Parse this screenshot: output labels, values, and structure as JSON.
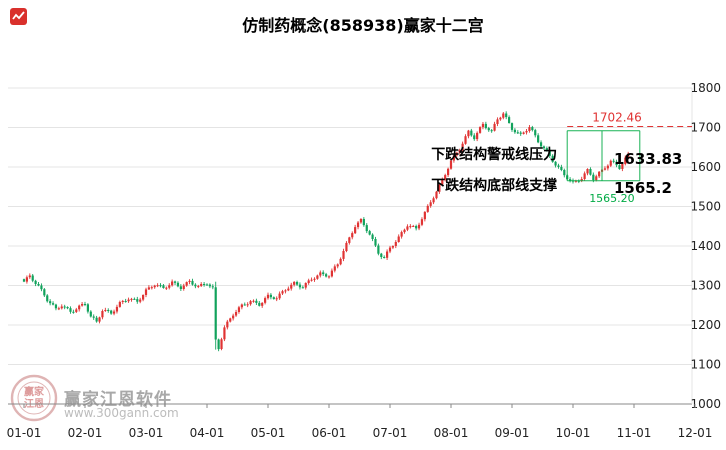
{
  "title": "仿制药概念(858938)赢家十二宫",
  "watermark": {
    "brand": "赢家江恩软件",
    "url": "www.300gann.com",
    "seal_line1": "赢家",
    "seal_line2": "江恩"
  },
  "colors": {
    "up": "#e03333",
    "down": "#11a25c",
    "grid": "#e4e4e4",
    "axis": "#8a8a8a",
    "tick_text": "#222222",
    "annotation_red": "#e03333",
    "annotation_green": "#00aa44",
    "annotation_black": "#000000",
    "logo_red": "#d9302c"
  },
  "chart_data": {
    "type": "candlestick",
    "title": "仿制药概念(858938)赢家十二宫",
    "x_tick_labels": [
      "01-01",
      "02-01",
      "03-01",
      "04-01",
      "05-01",
      "06-01",
      "07-01",
      "08-01",
      "09-01",
      "10-01",
      "11-01",
      "12-01"
    ],
    "y_ticks": [
      1000,
      1100,
      1200,
      1300,
      1400,
      1500,
      1600,
      1700,
      1800
    ],
    "y_range": [
      1000,
      1800
    ],
    "days_per_month": 21,
    "num_days": 209,
    "last_close": 1633.83,
    "close_waypoints": [
      [
        0,
        1310
      ],
      [
        2,
        1322
      ],
      [
        5,
        1295
      ],
      [
        8,
        1262
      ],
      [
        11,
        1240
      ],
      [
        13,
        1252
      ],
      [
        16,
        1236
      ],
      [
        19,
        1248
      ],
      [
        21,
        1255
      ],
      [
        23,
        1220
      ],
      [
        25,
        1205
      ],
      [
        27,
        1235
      ],
      [
        30,
        1228
      ],
      [
        33,
        1255
      ],
      [
        36,
        1270
      ],
      [
        39,
        1262
      ],
      [
        42,
        1288
      ],
      [
        45,
        1302
      ],
      [
        48,
        1290
      ],
      [
        51,
        1305
      ],
      [
        54,
        1295
      ],
      [
        57,
        1312
      ],
      [
        60,
        1300
      ],
      [
        63,
        1308
      ],
      [
        65,
        1292
      ],
      [
        66,
        1160
      ],
      [
        67,
        1140
      ],
      [
        69,
        1190
      ],
      [
        72,
        1225
      ],
      [
        75,
        1248
      ],
      [
        78,
        1262
      ],
      [
        81,
        1255
      ],
      [
        84,
        1275
      ],
      [
        87,
        1268
      ],
      [
        90,
        1288
      ],
      [
        93,
        1302
      ],
      [
        96,
        1295
      ],
      [
        99,
        1318
      ],
      [
        102,
        1332
      ],
      [
        105,
        1328
      ],
      [
        108,
        1355
      ],
      [
        111,
        1402
      ],
      [
        114,
        1448
      ],
      [
        116,
        1462
      ],
      [
        119,
        1430
      ],
      [
        122,
        1385
      ],
      [
        124,
        1372
      ],
      [
        126,
        1398
      ],
      [
        129,
        1422
      ],
      [
        132,
        1452
      ],
      [
        135,
        1440
      ],
      [
        138,
        1482
      ],
      [
        141,
        1525
      ],
      [
        144,
        1568
      ],
      [
        146,
        1602
      ],
      [
        147,
        1618
      ],
      [
        150,
        1648
      ],
      [
        153,
        1688
      ],
      [
        155,
        1672
      ],
      [
        158,
        1705
      ],
      [
        161,
        1688
      ],
      [
        163,
        1722
      ],
      [
        165,
        1738
      ],
      [
        167,
        1712
      ],
      [
        168,
        1700
      ],
      [
        171,
        1682
      ],
      [
        174,
        1702
      ],
      [
        177,
        1662
      ],
      [
        180,
        1635
      ],
      [
        183,
        1605
      ],
      [
        186,
        1582
      ],
      [
        189,
        1562
      ],
      [
        192,
        1575
      ],
      [
        194,
        1592
      ],
      [
        196,
        1570
      ],
      [
        199,
        1588
      ],
      [
        202,
        1612
      ],
      [
        205,
        1598
      ],
      [
        208,
        1633.83
      ]
    ],
    "annotations": {
      "resistance_value": 1702.46,
      "resistance_label": "1702.46",
      "pressure_text": "下跌结构警戒线压力",
      "support_text": "下跌结构底部线支撑",
      "last_price_label": "1633.83",
      "support_price_label": "1565.2",
      "support_small_label": "1565.20",
      "structure": {
        "top": 1692,
        "bottom": 1565.2,
        "start_day": 187,
        "mid_day": 199,
        "end_day": 212
      }
    }
  }
}
